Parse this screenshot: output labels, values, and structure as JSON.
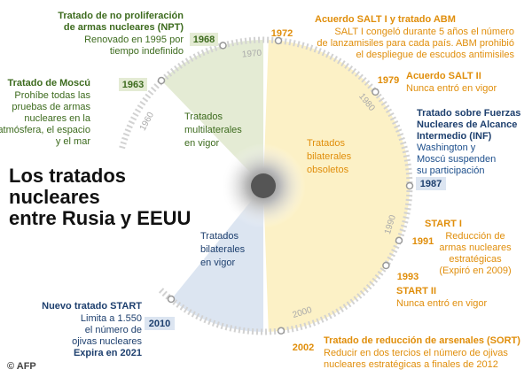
{
  "title": [
    "Los tratados",
    "nucleares",
    "entre Rusia y EEUU"
  ],
  "axis_years": [
    "1960",
    "1970",
    "1980",
    "1990",
    "2000"
  ],
  "sectors": {
    "multilateral": [
      "Tratados",
      "multilaterales",
      "en vigor"
    ],
    "bilateral_obsolete": [
      "Tratados",
      "bilaterales",
      "obsoletos"
    ],
    "bilateral_active": [
      "Tratados",
      "bilaterales",
      "en vigor"
    ]
  },
  "events": [
    {
      "year": "1963",
      "title": [
        "Tratado de Moscú"
      ],
      "text": [
        "Prohíbe todas las",
        "pruebas de armas",
        "nucleares en la",
        "atmósfera, el espacio",
        "y el mar"
      ]
    },
    {
      "year": "1968",
      "title": [
        "Tratado de no proliferación",
        "de armas nucleares (NPT)"
      ],
      "text": [
        "Renovado en 1995 por",
        "tiempo indefinido"
      ]
    },
    {
      "year": "1972",
      "title": [
        "Acuerdo SALT I y tratado ABM"
      ],
      "text": [
        "SALT I congeló durante 5 años el número",
        "de lanzamisiles para cada país. ABM prohibió",
        "el despliegue de escudos antimisiles"
      ]
    },
    {
      "year": "1979",
      "title": [
        "Acuerdo  SALT II"
      ],
      "text": [
        "Nunca entró en vigor"
      ]
    },
    {
      "year": "1987",
      "title": [
        "Tratado sobre Fuerzas",
        "Nucleares de Alcance",
        "Intermedio (INF)"
      ],
      "text": [
        "Washington y",
        "Moscú suspenden",
        "su participación"
      ]
    },
    {
      "year": "1991",
      "title": [
        "START I"
      ],
      "text": [
        "Reducción de",
        "armas nucleares",
        "estratégicas",
        "(Expiró en 2009)"
      ]
    },
    {
      "year": "1993",
      "title": [
        "START II"
      ],
      "text": [
        "Nunca entró en vigor"
      ]
    },
    {
      "year": "2002",
      "title": [
        "Tratado de reducción de arsenales (SORT)"
      ],
      "text": [
        "Reducir en dos tercios el número de ojivas",
        "nucleares estratégicas a finales de 2012"
      ]
    },
    {
      "year": "2010",
      "title": [
        "Nuevo tratado START"
      ],
      "text": [
        "Limita a 1.550",
        "el número de",
        "ojivas nucleares",
        "Expira en 2021"
      ]
    }
  ],
  "credit": "© AFP"
}
